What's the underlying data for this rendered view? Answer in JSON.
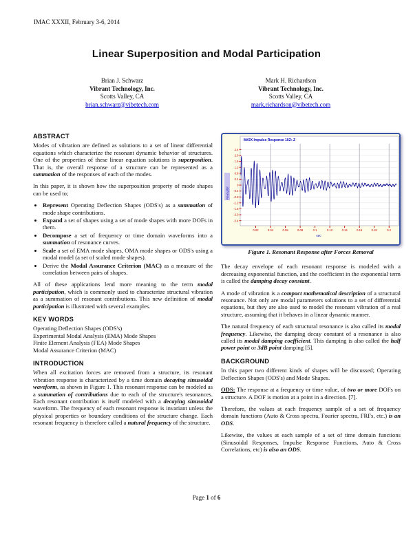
{
  "header": {
    "conference_line": "IMAC XXXII, February 3-6, 2014"
  },
  "title": "Linear Superposition and Modal Participation",
  "authors": [
    {
      "name": "Brian J. Schwarz",
      "company": "Vibrant Technology, Inc.",
      "city": "Scotts Valley, CA",
      "email": "brian.schwarz@vibetech.com"
    },
    {
      "name": "Mark H. Richardson",
      "company": "Vibrant Technology, Inc.",
      "city": "Scotts Valley, CA",
      "email": "mark.richardson@vibetech.com"
    }
  ],
  "left_column": {
    "abstract_heading": "ABSTRACT",
    "abstract_p1": [
      {
        "t": "Modes of vibration are defined as solutions to a set of linear differential equations which characterize the resonant dynamic behavior of structures.  One of the properties of these linear equation solutions is "
      },
      {
        "t": "superposition",
        "b": true,
        "i": true
      },
      {
        "t": ".  That is, the overall response of a structure can be represented as a "
      },
      {
        "t": "summation",
        "b": true,
        "i": true
      },
      {
        "t": " of the responses of each of the modes."
      }
    ],
    "abstract_p2": [
      {
        "t": "In this paper, it is shown how the superposition property of mode shapes can be used to;"
      }
    ],
    "bullets": [
      [
        {
          "t": "Represent",
          "b": true
        },
        {
          "t": " Operating Deflection Shapes (ODS's) as a "
        },
        {
          "t": "summation",
          "b": true,
          "i": true
        },
        {
          "t": " of mode shape contributions."
        }
      ],
      [
        {
          "t": "Expand",
          "b": true
        },
        {
          "t": " a set of shapes using a set of mode shapes with more DOFs in them."
        }
      ],
      [
        {
          "t": "Decompose",
          "b": true
        },
        {
          "t": " a set of frequency or time domain waveforms into a "
        },
        {
          "t": "summation",
          "b": true,
          "i": true
        },
        {
          "t": " of resonance curves."
        }
      ],
      [
        {
          "t": "Scale",
          "b": true
        },
        {
          "t": " a set of EMA mode shapes, OMA mode shapes or ODS's using a modal model (a set of scaled mode shapes)."
        }
      ],
      [
        {
          "t": "Derive the "
        },
        {
          "t": "Modal Assurance Criterion (MAC)",
          "b": true
        },
        {
          "t": " as a measure of the correlation between pairs of shapes."
        }
      ]
    ],
    "abstract_p3": [
      {
        "t": "All of these applications lend more meaning to the term "
      },
      {
        "t": "modal participation",
        "b": true,
        "i": true
      },
      {
        "t": ", which is commonly used to characterize structural vibration as a summation of resonant contributions.  This new definition of "
      },
      {
        "t": "modal participation",
        "b": true,
        "i": true
      },
      {
        "t": " is illustrated with several examples."
      }
    ],
    "keywords_heading": "KEY WORDS",
    "keywords": [
      "Operating Deflection Shapes (ODS's)",
      "Experimental Modal Analysis (EMA) Mode Shapes",
      "Finite Element Analysis (FEA) Mode Shapes",
      "Modal Assurance Criterion (MAC)"
    ],
    "intro_heading": "INTRODUCTION",
    "intro_p1": [
      {
        "t": "When all excitation forces are removed from a structure, its resonant vibration response is characterized by a time domain "
      },
      {
        "t": "decaying sinusoidal waveform",
        "b": true,
        "i": true
      },
      {
        "t": ", as shown in Figure 1.  This resonant response can be modeled as a "
      },
      {
        "t": "summation of contributions",
        "b": true,
        "i": true
      },
      {
        "t": " due to each of the structure's resonances.  Each resonant contribution is itself modeled with a "
      },
      {
        "t": "decaying sinusoidal",
        "b": true,
        "i": true
      },
      {
        "t": " waveform. The frequency of each resonant response is invariant unless the physical properties or boundary conditions of the structure change. Each resonant frequency is therefore called a "
      },
      {
        "t": "natural frequency",
        "b": true,
        "i": true
      },
      {
        "t": " of the structure."
      }
    ]
  },
  "right_column": {
    "figure": {
      "caption": "Figure 1. Resonant Response after Forces Removal",
      "chart_data": {
        "type": "line",
        "title": "M#2X Impulse Response 10Z:-Z",
        "ylabel": "Real g/lbf",
        "xlabel": "sec",
        "ylim": [
          -2.6,
          2.6
        ],
        "xlim": [
          0,
          0.21
        ],
        "yticks": [
          2.4,
          2.0,
          1.6,
          1.2,
          0.8,
          0.4,
          0,
          -0.4,
          -0.8,
          -1.2,
          -1.6,
          -2.0,
          -2.4
        ],
        "xticks": [
          0.02,
          0.04,
          0.06,
          0.08,
          0.1,
          0.12,
          0.14,
          0.16,
          0.18,
          0.2
        ],
        "grid": true,
        "waveform": {
          "samples": 2200,
          "components": [
            {
              "amp": 1.3,
              "decay": 16,
              "freq": 240,
              "phase": 0
            },
            {
              "amp": 0.9,
              "decay": 20,
              "freq": 283,
              "phase": 0.8
            },
            {
              "amp": 0.08,
              "decay": 4,
              "freq": 67,
              "phase": 0.3
            },
            {
              "amp": 0.03,
              "decay": 0,
              "freq": 900,
              "phase": 0
            }
          ]
        },
        "colors": {
          "line": "#00008B",
          "ticks": "#CC0000",
          "title": "#0000BB",
          "grid_v": "#A9A9B8",
          "grid_h": "#E0E0E0",
          "plot_bg": "#FFFFFF",
          "frame_bg": "#FDFCE6",
          "border": "#3A55A8",
          "ylabel_bg": "#CBC3EF",
          "ylabel_fg": "#2020C0"
        }
      }
    },
    "p_decay": [
      {
        "t": "The decay envelope of each resonant response is modeled with a decreasing exponential function, and the coefficient in the exponential term is called the "
      },
      {
        "t": "damping decay constant",
        "b": true,
        "i": true
      },
      {
        "t": "."
      }
    ],
    "p_mode": [
      {
        "t": "A mode of vibration is a "
      },
      {
        "t": "compact mathematical description",
        "b": true,
        "i": true
      },
      {
        "t": " of a structural resonance.  Not only are modal parameters solutions to a set of differential equations, but they are also used to model the resonant vibration of a real structure, assuming that it behaves in a linear dynamic manner."
      }
    ],
    "p_natural": [
      {
        "t": "The natural frequency of each structural resonance is also called its "
      },
      {
        "t": "modal frequency",
        "b": true,
        "i": true
      },
      {
        "t": ".  Likewise, the damping decay constant of a resonance is also called its "
      },
      {
        "t": "modal damping coefficient",
        "b": true,
        "i": true
      },
      {
        "t": ".  This damping is also called the "
      },
      {
        "t": "half power point",
        "b": true,
        "i": true
      },
      {
        "t": " or "
      },
      {
        "t": "3dB point",
        "b": true,
        "i": true
      },
      {
        "t": " damping [5]."
      }
    ],
    "background_heading": "BACKGROUND",
    "background_p1": [
      {
        "t": "In this paper two different kinds of shapes will be discussed; Operating Deflection Shapes (ODS's) and Mode Shapes."
      }
    ],
    "p_ods": [
      {
        "t": "ODS:",
        "b": true,
        "u": true
      },
      {
        "t": "  The response at a frequency or time value, of "
      },
      {
        "t": "two or more",
        "b": true,
        "i": true
      },
      {
        "t": " DOFs on a structure.  A DOF is motion at a point in a direction. [7]."
      }
    ],
    "p_therefore": [
      {
        "t": "Therefore, the values at each frequency sample of a set of frequency domain functions (Auto & Cross spectra, Fourier spectra, FRFs, etc.) "
      },
      {
        "t": "is an ODS",
        "b": true,
        "i": true
      },
      {
        "t": "."
      }
    ],
    "p_likewise": [
      {
        "t": "Likewise, the values at each sample of a set of time domain functions (Sinusoidal Responses, Impulse Response Functions, Auto & Cross Correlations, etc) "
      },
      {
        "t": "is also an ODS",
        "b": true,
        "i": true
      },
      {
        "t": "."
      }
    ]
  },
  "footer": {
    "page_runs": [
      {
        "t": "Page "
      },
      {
        "t": "1",
        "b": true
      },
      {
        "t": " of "
      },
      {
        "t": "6",
        "b": true
      }
    ]
  }
}
